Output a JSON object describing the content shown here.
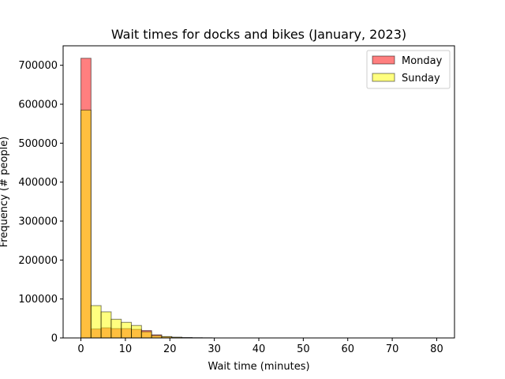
{
  "chart_data": {
    "type": "bar",
    "title": "Wait times for docks and bikes (January, 2023)",
    "xlabel": "Wait time (minutes)",
    "ylabel": "Frequency (# people)",
    "xlim": [
      -4,
      84
    ],
    "ylim": [
      0,
      750000
    ],
    "xticks": [
      0,
      10,
      20,
      30,
      40,
      50,
      60,
      70,
      80
    ],
    "yticks": [
      0,
      100000,
      200000,
      300000,
      400000,
      500000,
      600000,
      700000
    ],
    "grid": false,
    "legend_position": "top-right",
    "bin_width": 2.27,
    "series": [
      {
        "name": "Monday",
        "color": "#ff0000",
        "opacity": 0.5,
        "bins": [
          {
            "x0": 0.0,
            "value": 718000
          },
          {
            "x0": 2.27,
            "value": 23000
          },
          {
            "x0": 4.54,
            "value": 26000
          },
          {
            "x0": 6.81,
            "value": 24000
          },
          {
            "x0": 9.08,
            "value": 24000
          },
          {
            "x0": 11.35,
            "value": 22000
          },
          {
            "x0": 13.62,
            "value": 19000
          },
          {
            "x0": 15.89,
            "value": 8000
          },
          {
            "x0": 18.16,
            "value": 3000
          },
          {
            "x0": 20.43,
            "value": 1500
          },
          {
            "x0": 22.7,
            "value": 800
          },
          {
            "x0": 24.97,
            "value": 400
          },
          {
            "x0": 27.24,
            "value": 200
          }
        ]
      },
      {
        "name": "Sunday",
        "color": "#ffff00",
        "opacity": 0.5,
        "bins": [
          {
            "x0": 0.0,
            "value": 585000
          },
          {
            "x0": 2.27,
            "value": 83000
          },
          {
            "x0": 4.54,
            "value": 67000
          },
          {
            "x0": 6.81,
            "value": 48000
          },
          {
            "x0": 9.08,
            "value": 40000
          },
          {
            "x0": 11.35,
            "value": 32000
          },
          {
            "x0": 13.62,
            "value": 16000
          },
          {
            "x0": 15.89,
            "value": 6000
          },
          {
            "x0": 18.16,
            "value": 3500
          },
          {
            "x0": 20.43,
            "value": 1800
          },
          {
            "x0": 22.7,
            "value": 900
          },
          {
            "x0": 24.97,
            "value": 400
          },
          {
            "x0": 27.24,
            "value": 200
          }
        ]
      }
    ]
  }
}
